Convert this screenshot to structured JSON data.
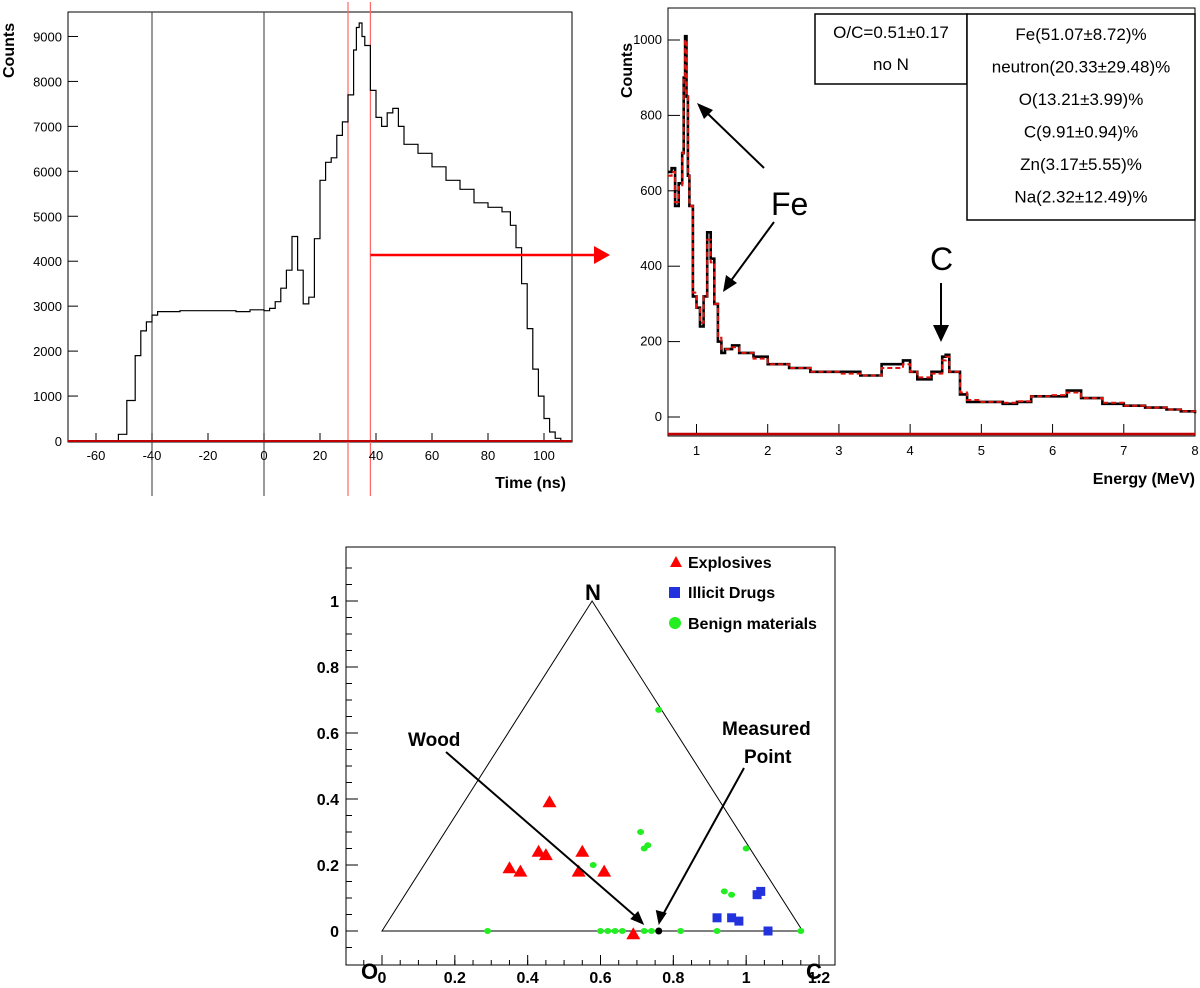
{
  "colors": {
    "histogram": "#000000",
    "fit": "#e0140f",
    "gate": "#ff6666",
    "arrow": "#ff0000",
    "explosives": "#ff0000",
    "drugs": "#2233dd",
    "benign": "#22ee22"
  },
  "chart_data": [
    {
      "type": "line",
      "name": "time-spectrum",
      "xlabel": "Time (ns)",
      "ylabel": "Counts",
      "xlim": [
        -70,
        110
      ],
      "ylim": [
        0,
        9500
      ],
      "x_ticks": [
        "-60",
        "-40",
        "-20",
        "0",
        "20",
        "40",
        "60",
        "80",
        "100"
      ],
      "y_ticks": [
        "1000",
        "2000",
        "3000",
        "4000",
        "5000",
        "6000",
        "7000",
        "8000",
        "9000"
      ],
      "vertical_lines_black": [
        -40,
        0
      ],
      "vertical_lines_red": [
        30,
        38
      ],
      "series": [
        {
          "x": [
            -70,
            -55,
            -52,
            -49,
            -46,
            -44,
            -42,
            -40,
            -38,
            -30,
            -20,
            -10,
            -5,
            0,
            2,
            4,
            6,
            8,
            10,
            12,
            14,
            16,
            18,
            20,
            22,
            24,
            26,
            28,
            30,
            32,
            33,
            34,
            35,
            36,
            38,
            40,
            42,
            44,
            46,
            48,
            50,
            55,
            60,
            65,
            70,
            75,
            80,
            85,
            88,
            90,
            92,
            94,
            96,
            98,
            100,
            102,
            104,
            106,
            110
          ],
          "y": [
            0,
            10,
            150,
            900,
            1900,
            2450,
            2650,
            2800,
            2880,
            2900,
            2900,
            2880,
            2920,
            2900,
            2950,
            3100,
            3400,
            3800,
            4550,
            3800,
            3050,
            3200,
            4500,
            5800,
            6200,
            6300,
            6800,
            7100,
            7700,
            8700,
            9200,
            9300,
            9000,
            8800,
            7800,
            7200,
            7000,
            7300,
            7400,
            7000,
            6600,
            6400,
            6100,
            5800,
            5600,
            5300,
            5200,
            5100,
            4800,
            4300,
            3500,
            2500,
            1600,
            1000,
            500,
            200,
            60,
            10,
            0
          ]
        }
      ]
    },
    {
      "type": "line",
      "name": "energy-spectrum",
      "xlabel": "Energy (MeV)",
      "ylabel": "Counts",
      "xlim": [
        0.6,
        8
      ],
      "ylim": [
        -50,
        1050
      ],
      "x_ticks": [
        "1",
        "2",
        "3",
        "4",
        "5",
        "6",
        "7",
        "8"
      ],
      "y_ticks": [
        "0",
        "200",
        "400",
        "600",
        "800",
        "1000"
      ],
      "series": [
        {
          "name": "data",
          "x": [
            0.6,
            0.65,
            0.7,
            0.75,
            0.8,
            0.82,
            0.84,
            0.86,
            0.88,
            0.9,
            0.95,
            1.0,
            1.05,
            1.1,
            1.15,
            1.2,
            1.25,
            1.3,
            1.35,
            1.4,
            1.5,
            1.6,
            1.8,
            2.0,
            2.3,
            2.6,
            3.0,
            3.3,
            3.6,
            3.9,
            4.0,
            4.1,
            4.3,
            4.45,
            4.5,
            4.55,
            4.7,
            4.8,
            5.0,
            5.3,
            5.5,
            5.7,
            6.0,
            6.2,
            6.4,
            6.7,
            7.0,
            7.3,
            7.6,
            7.8,
            8.0
          ],
          "y": [
            650,
            660,
            560,
            620,
            700,
            900,
            1010,
            850,
            640,
            560,
            320,
            290,
            240,
            320,
            490,
            420,
            300,
            200,
            170,
            180,
            190,
            170,
            160,
            140,
            130,
            120,
            120,
            110,
            140,
            150,
            120,
            100,
            120,
            160,
            165,
            120,
            60,
            40,
            40,
            35,
            40,
            55,
            55,
            70,
            50,
            35,
            30,
            25,
            20,
            15,
            10
          ]
        },
        {
          "name": "fit",
          "x": [
            0.6,
            0.65,
            0.7,
            0.75,
            0.8,
            0.82,
            0.84,
            0.86,
            0.88,
            0.9,
            0.95,
            1.0,
            1.05,
            1.1,
            1.15,
            1.2,
            1.25,
            1.3,
            1.35,
            1.4,
            1.5,
            1.6,
            1.8,
            2.0,
            2.3,
            2.6,
            3.0,
            3.3,
            3.6,
            3.9,
            4.0,
            4.1,
            4.3,
            4.45,
            4.5,
            4.55,
            4.7,
            4.8,
            5.0,
            5.3,
            5.5,
            5.7,
            6.0,
            6.2,
            6.4,
            6.7,
            7.0,
            7.3,
            7.6,
            7.8,
            8.0
          ],
          "y": [
            640,
            650,
            570,
            610,
            700,
            900,
            1000,
            850,
            640,
            560,
            330,
            290,
            250,
            320,
            470,
            410,
            300,
            210,
            180,
            180,
            185,
            170,
            155,
            140,
            130,
            120,
            115,
            110,
            130,
            140,
            120,
            105,
            115,
            150,
            160,
            120,
            65,
            45,
            40,
            38,
            42,
            55,
            58,
            65,
            50,
            38,
            30,
            25,
            20,
            15,
            10
          ]
        }
      ],
      "results_box_left": [
        "O/C=0.51±0.17",
        "no N"
      ],
      "results_box_right": [
        "Fe(51.07±8.72)%",
        "neutron(20.33±29.48)%",
        "O(13.21±3.99)%",
        "C(9.91±0.94)%",
        "Zn(3.17±5.55)%",
        "Na(2.32±12.49)%"
      ],
      "annotations": {
        "fe": "Fe",
        "c": "C"
      }
    },
    {
      "type": "scatter",
      "name": "ternary-plot",
      "xlim": [
        -0.1,
        1.25
      ],
      "ylim": [
        -0.07,
        1.17
      ],
      "x_ticks": [
        "0",
        "0.2",
        "0.4",
        "0.6",
        "0.8",
        "1",
        "1.2"
      ],
      "y_ticks": [
        "0",
        "0.2",
        "0.4",
        "0.6",
        "0.8",
        "1"
      ],
      "triangle": [
        [
          0,
          0
        ],
        [
          0.577,
          1
        ],
        [
          1.155,
          0
        ]
      ],
      "corner_labels": {
        "o": "O",
        "n": "N",
        "c": "C"
      },
      "annotations": {
        "wood": "Wood",
        "measured_line1": "Measured",
        "measured_line2": "Point",
        "wood_point": [
          0.72,
          0.0
        ],
        "measured_point": [
          0.76,
          0.0
        ]
      },
      "series": [
        {
          "name": "Explosives",
          "marker": "triangle",
          "x": [
            0.46,
            0.35,
            0.38,
            0.43,
            0.45,
            0.55,
            0.54,
            0.61,
            0.69
          ],
          "y": [
            0.39,
            0.19,
            0.18,
            0.24,
            0.23,
            0.24,
            0.18,
            0.18,
            -0.01
          ]
        },
        {
          "name": "Illicit Drugs",
          "marker": "square",
          "x": [
            0.92,
            0.96,
            0.98,
            1.03,
            1.04,
            1.06
          ],
          "y": [
            0.04,
            0.04,
            0.03,
            0.11,
            0.12,
            0.0
          ]
        },
        {
          "name": "Benign materials",
          "marker": "circle",
          "x": [
            0.76,
            0.71,
            0.72,
            0.73,
            0.58,
            1.0,
            0.94,
            0.96,
            0.29,
            0.6,
            0.62,
            0.64,
            0.66,
            0.72,
            0.74,
            0.82,
            0.92,
            1.15
          ],
          "y": [
            0.67,
            0.3,
            0.25,
            0.26,
            0.2,
            0.25,
            0.12,
            0.11,
            0.0,
            0.0,
            0.0,
            0.0,
            0.0,
            0.0,
            0.0,
            0.0,
            0.0,
            0.0
          ]
        }
      ]
    }
  ]
}
